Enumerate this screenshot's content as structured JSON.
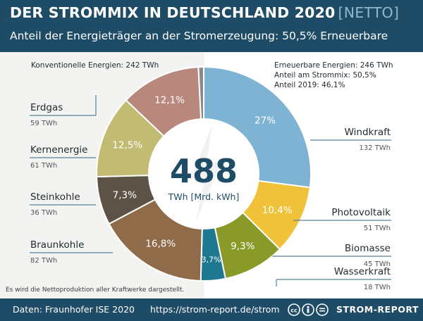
{
  "header": {
    "title": "DER STROMMIX IN DEUTSCHLAND 2020",
    "title_suffix": "[NETTO]",
    "subtitle": "Anteil der Energieträger an der Stromerzeugung: 50,5% Erneuerbare"
  },
  "groups": {
    "conventional": "Konventionelle Energien: 242 TWh",
    "renewable": [
      "Erneuerbare Energien: 246 TWh",
      "Anteil am Strommix: 50,5%",
      "Anteil 2019: 46,1%"
    ]
  },
  "center": {
    "total": "488",
    "unit": "TWh [Mrd. kWh]"
  },
  "note": "Es wird die Nettoproduktion aller Kraftwerke dargestellt.",
  "footer": {
    "source": "Daten: Fraunhofer ISE 2020",
    "url": "https://strom-report.de/strom",
    "license_icon": "cc-by-sa-icon",
    "brand": "STROM-REPORT"
  },
  "colors": {
    "header": "#1e4c66",
    "label_line": "#5c7f92"
  },
  "chart_data": {
    "type": "pie",
    "style": "donut",
    "title": "DER STROMMIX IN DEUTSCHLAND 2020 [NETTO]",
    "total_twh": 488,
    "slices": [
      {
        "name": "Windkraft",
        "twh": 132,
        "value_label": "132 TWh",
        "pct": 27.0,
        "pct_label": "27%",
        "color": "#7fb3d3"
      },
      {
        "name": "Photovoltaik",
        "twh": 51,
        "value_label": "51 TWh",
        "pct": 10.4,
        "pct_label": "10,4%",
        "color": "#efc23a"
      },
      {
        "name": "Biomasse",
        "twh": 45,
        "value_label": "45 TWh",
        "pct": 9.3,
        "pct_label": "9,3%",
        "color": "#8a9a28"
      },
      {
        "name": "Wasserkraft",
        "twh": 18,
        "value_label": "18 TWh",
        "pct": 3.7,
        "pct_label": "3,7%",
        "color": "#1e7890"
      },
      {
        "name": "Braunkohle",
        "twh": 82,
        "value_label": "82 TWh",
        "pct": 16.8,
        "pct_label": "16,8%",
        "color": "#8f6b4a"
      },
      {
        "name": "Steinkohle",
        "twh": 36,
        "value_label": "36 TWh",
        "pct": 7.3,
        "pct_label": "7,3%",
        "color": "#5c5346"
      },
      {
        "name": "Kernenergie",
        "twh": 61,
        "value_label": "61 TWh",
        "pct": 12.5,
        "pct_label": "12,5%",
        "color": "#c2bb72"
      },
      {
        "name": "Erdgas",
        "twh": 59,
        "value_label": "59 TWh",
        "pct": 12.1,
        "pct_label": "12,1%",
        "color": "#b9887c"
      },
      {
        "name": "",
        "twh": 4,
        "value_label": "",
        "pct": 0.8,
        "pct_label": "",
        "color": "#8a8a8a"
      }
    ]
  }
}
